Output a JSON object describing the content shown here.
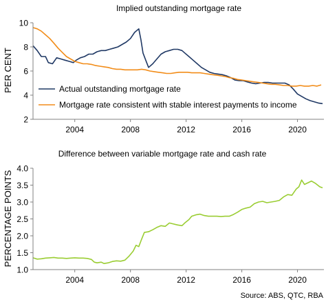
{
  "source": "Source: ABS, QTC, RBA",
  "colors": {
    "actual": "#1f3864",
    "consistent": "#f28c18",
    "spread": "#9acd32",
    "axis": "#808080"
  },
  "chart_data": [
    {
      "type": "line",
      "title": "Implied outstanding mortgage rate",
      "ylabel": "PER CENT",
      "xlabel": "",
      "xlim": [
        2001,
        2021.9
      ],
      "ylim": [
        2,
        10
      ],
      "x_ticks": [
        2004,
        2008,
        2012,
        2016,
        2020
      ],
      "y_ticks": [
        2,
        4,
        6,
        8,
        10
      ],
      "grid": false,
      "legend_position": "bottom-left",
      "series": [
        {
          "name": "Actual outstanding mortgage rate",
          "color": "#1f3864",
          "points": [
            [
              2001.0,
              8.1
            ],
            [
              2001.3,
              7.7
            ],
            [
              2001.6,
              7.2
            ],
            [
              2001.9,
              7.2
            ],
            [
              2002.1,
              6.7
            ],
            [
              2002.4,
              6.6
            ],
            [
              2002.7,
              7.1
            ],
            [
              2003.0,
              7.0
            ],
            [
              2003.3,
              6.9
            ],
            [
              2003.6,
              6.8
            ],
            [
              2003.9,
              6.7
            ],
            [
              2004.1,
              6.9
            ],
            [
              2004.4,
              7.1
            ],
            [
              2004.7,
              7.2
            ],
            [
              2005.0,
              7.4
            ],
            [
              2005.3,
              7.4
            ],
            [
              2005.6,
              7.6
            ],
            [
              2005.9,
              7.7
            ],
            [
              2006.2,
              7.7
            ],
            [
              2006.5,
              7.8
            ],
            [
              2006.8,
              7.9
            ],
            [
              2007.1,
              8.0
            ],
            [
              2007.4,
              8.2
            ],
            [
              2007.7,
              8.4
            ],
            [
              2008.0,
              8.7
            ],
            [
              2008.3,
              9.2
            ],
            [
              2008.6,
              9.5
            ],
            [
              2008.75,
              8.6
            ],
            [
              2008.9,
              7.5
            ],
            [
              2009.1,
              6.9
            ],
            [
              2009.3,
              6.3
            ],
            [
              2009.6,
              6.6
            ],
            [
              2009.9,
              7.0
            ],
            [
              2010.2,
              7.4
            ],
            [
              2010.5,
              7.6
            ],
            [
              2010.8,
              7.7
            ],
            [
              2011.1,
              7.8
            ],
            [
              2011.4,
              7.8
            ],
            [
              2011.7,
              7.7
            ],
            [
              2011.9,
              7.5
            ],
            [
              2012.2,
              7.2
            ],
            [
              2012.5,
              6.9
            ],
            [
              2012.8,
              6.6
            ],
            [
              2013.1,
              6.3
            ],
            [
              2013.4,
              6.1
            ],
            [
              2013.7,
              5.9
            ],
            [
              2014.0,
              5.8
            ],
            [
              2014.3,
              5.75
            ],
            [
              2014.6,
              5.7
            ],
            [
              2014.9,
              5.6
            ],
            [
              2015.2,
              5.45
            ],
            [
              2015.5,
              5.25
            ],
            [
              2015.8,
              5.2
            ],
            [
              2016.1,
              5.2
            ],
            [
              2016.4,
              5.1
            ],
            [
              2016.7,
              5.0
            ],
            [
              2017.0,
              4.95
            ],
            [
              2017.3,
              5.0
            ],
            [
              2017.6,
              5.05
            ],
            [
              2017.9,
              5.05
            ],
            [
              2018.2,
              5.0
            ],
            [
              2018.5,
              5.0
            ],
            [
              2018.8,
              5.0
            ],
            [
              2019.1,
              5.0
            ],
            [
              2019.4,
              4.85
            ],
            [
              2019.7,
              4.5
            ],
            [
              2020.0,
              4.1
            ],
            [
              2020.3,
              3.9
            ],
            [
              2020.6,
              3.7
            ],
            [
              2020.9,
              3.55
            ],
            [
              2021.2,
              3.45
            ],
            [
              2021.5,
              3.35
            ],
            [
              2021.8,
              3.3
            ]
          ]
        },
        {
          "name": "Mortgage rate consistent with stable interest payments to income",
          "color": "#f28c18",
          "points": [
            [
              2001.0,
              9.6
            ],
            [
              2001.3,
              9.5
            ],
            [
              2001.6,
              9.3
            ],
            [
              2001.9,
              9.0
            ],
            [
              2002.2,
              8.7
            ],
            [
              2002.5,
              8.3
            ],
            [
              2002.8,
              7.9
            ],
            [
              2003.1,
              7.55
            ],
            [
              2003.4,
              7.2
            ],
            [
              2003.7,
              7.0
            ],
            [
              2004.0,
              6.8
            ],
            [
              2004.3,
              6.7
            ],
            [
              2004.6,
              6.6
            ],
            [
              2004.9,
              6.6
            ],
            [
              2005.2,
              6.55
            ],
            [
              2005.5,
              6.45
            ],
            [
              2005.8,
              6.4
            ],
            [
              2006.1,
              6.35
            ],
            [
              2006.4,
              6.3
            ],
            [
              2006.7,
              6.2
            ],
            [
              2007.0,
              6.15
            ],
            [
              2007.3,
              6.15
            ],
            [
              2007.6,
              6.1
            ],
            [
              2007.9,
              6.1
            ],
            [
              2008.2,
              6.1
            ],
            [
              2008.5,
              6.1
            ],
            [
              2008.8,
              6.15
            ],
            [
              2009.1,
              6.1
            ],
            [
              2009.4,
              6.0
            ],
            [
              2009.7,
              5.95
            ],
            [
              2010.0,
              5.9
            ],
            [
              2010.3,
              5.85
            ],
            [
              2010.6,
              5.8
            ],
            [
              2010.9,
              5.8
            ],
            [
              2011.2,
              5.85
            ],
            [
              2011.5,
              5.9
            ],
            [
              2011.8,
              5.9
            ],
            [
              2012.1,
              5.9
            ],
            [
              2012.4,
              5.85
            ],
            [
              2012.7,
              5.85
            ],
            [
              2013.0,
              5.85
            ],
            [
              2013.3,
              5.8
            ],
            [
              2013.6,
              5.75
            ],
            [
              2013.9,
              5.7
            ],
            [
              2014.2,
              5.65
            ],
            [
              2014.5,
              5.6
            ],
            [
              2014.8,
              5.55
            ],
            [
              2015.1,
              5.45
            ],
            [
              2015.4,
              5.4
            ],
            [
              2015.7,
              5.3
            ],
            [
              2016.0,
              5.25
            ],
            [
              2016.3,
              5.2
            ],
            [
              2016.6,
              5.15
            ],
            [
              2016.9,
              5.1
            ],
            [
              2017.2,
              5.05
            ],
            [
              2017.5,
              5.0
            ],
            [
              2017.8,
              4.95
            ],
            [
              2018.1,
              4.9
            ],
            [
              2018.4,
              4.9
            ],
            [
              2018.7,
              4.85
            ],
            [
              2019.0,
              4.8
            ],
            [
              2019.3,
              4.8
            ],
            [
              2019.6,
              4.75
            ],
            [
              2019.9,
              4.75
            ],
            [
              2020.2,
              4.8
            ],
            [
              2020.5,
              4.75
            ],
            [
              2020.8,
              4.75
            ],
            [
              2021.1,
              4.8
            ],
            [
              2021.4,
              4.75
            ],
            [
              2021.7,
              4.85
            ]
          ]
        }
      ]
    },
    {
      "type": "line",
      "title": "Difference between variable mortgage rate and cash rate",
      "ylabel": "PERCENTAGE POINTS",
      "xlabel": "",
      "xlim": [
        2001,
        2021.9
      ],
      "ylim": [
        1.0,
        4.0
      ],
      "x_ticks": [
        2004,
        2008,
        2012,
        2016,
        2020
      ],
      "y_ticks": [
        1.0,
        1.5,
        2.0,
        2.5,
        3.0,
        3.5,
        4.0
      ],
      "y_decimals": 1,
      "grid": false,
      "series": [
        {
          "name": "",
          "color": "#9acd32",
          "points": [
            [
              2001.0,
              1.35
            ],
            [
              2001.3,
              1.31
            ],
            [
              2001.6,
              1.32
            ],
            [
              2001.9,
              1.34
            ],
            [
              2002.2,
              1.35
            ],
            [
              2002.5,
              1.36
            ],
            [
              2002.8,
              1.34
            ],
            [
              2003.1,
              1.34
            ],
            [
              2003.4,
              1.33
            ],
            [
              2003.7,
              1.34
            ],
            [
              2004.0,
              1.35
            ],
            [
              2004.3,
              1.34
            ],
            [
              2004.6,
              1.34
            ],
            [
              2004.9,
              1.33
            ],
            [
              2005.2,
              1.3
            ],
            [
              2005.4,
              1.22
            ],
            [
              2005.6,
              1.2
            ],
            [
              2005.9,
              1.22
            ],
            [
              2006.1,
              1.18
            ],
            [
              2006.4,
              1.2
            ],
            [
              2006.7,
              1.24
            ],
            [
              2007.0,
              1.26
            ],
            [
              2007.3,
              1.25
            ],
            [
              2007.6,
              1.28
            ],
            [
              2007.9,
              1.4
            ],
            [
              2008.2,
              1.55
            ],
            [
              2008.4,
              1.72
            ],
            [
              2008.6,
              1.68
            ],
            [
              2008.8,
              1.9
            ],
            [
              2009.0,
              2.1
            ],
            [
              2009.3,
              2.12
            ],
            [
              2009.6,
              2.18
            ],
            [
              2009.9,
              2.25
            ],
            [
              2010.2,
              2.3
            ],
            [
              2010.5,
              2.28
            ],
            [
              2010.8,
              2.38
            ],
            [
              2011.1,
              2.35
            ],
            [
              2011.4,
              2.32
            ],
            [
              2011.7,
              2.3
            ],
            [
              2011.9,
              2.38
            ],
            [
              2012.2,
              2.48
            ],
            [
              2012.4,
              2.58
            ],
            [
              2012.7,
              2.62
            ],
            [
              2013.0,
              2.64
            ],
            [
              2013.3,
              2.6
            ],
            [
              2013.6,
              2.58
            ],
            [
              2013.9,
              2.58
            ],
            [
              2014.2,
              2.58
            ],
            [
              2014.5,
              2.57
            ],
            [
              2014.8,
              2.58
            ],
            [
              2015.1,
              2.58
            ],
            [
              2015.4,
              2.63
            ],
            [
              2015.7,
              2.7
            ],
            [
              2016.0,
              2.78
            ],
            [
              2016.3,
              2.82
            ],
            [
              2016.6,
              2.85
            ],
            [
              2016.9,
              2.95
            ],
            [
              2017.2,
              3.0
            ],
            [
              2017.5,
              3.02
            ],
            [
              2017.8,
              2.98
            ],
            [
              2018.1,
              3.0
            ],
            [
              2018.4,
              3.02
            ],
            [
              2018.7,
              3.05
            ],
            [
              2019.0,
              3.15
            ],
            [
              2019.3,
              3.22
            ],
            [
              2019.6,
              3.2
            ],
            [
              2019.9,
              3.38
            ],
            [
              2020.1,
              3.45
            ],
            [
              2020.3,
              3.65
            ],
            [
              2020.5,
              3.52
            ],
            [
              2020.8,
              3.58
            ],
            [
              2021.0,
              3.62
            ],
            [
              2021.3,
              3.55
            ],
            [
              2021.6,
              3.45
            ],
            [
              2021.8,
              3.42
            ]
          ]
        }
      ]
    }
  ]
}
